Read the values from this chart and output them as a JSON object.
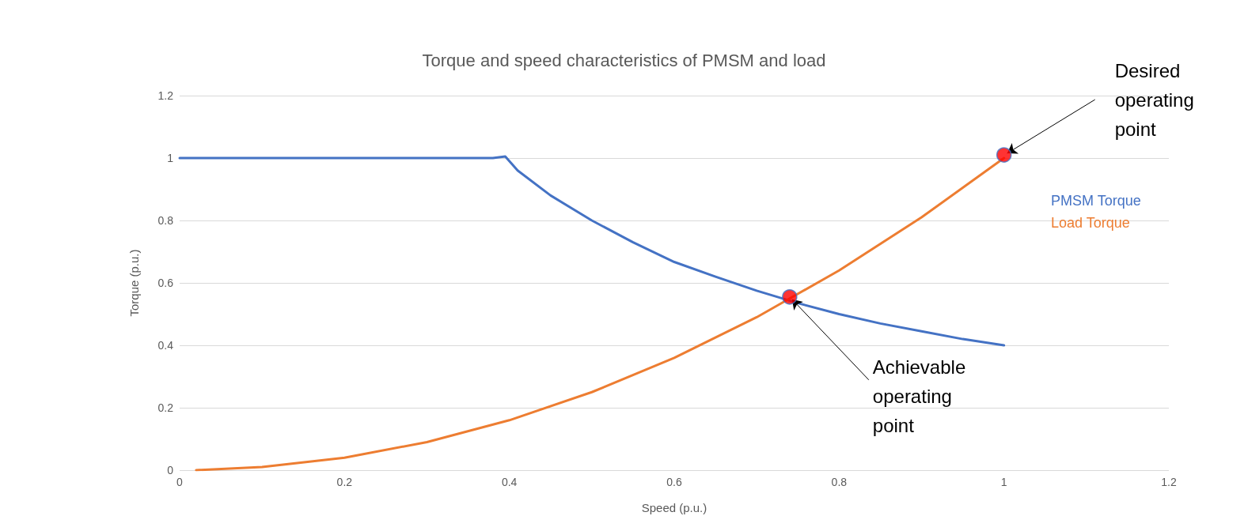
{
  "chart_data": {
    "type": "line",
    "title": "Torque and speed characteristics of PMSM and load",
    "xlabel": "Speed (p.u.)",
    "ylabel": "Torque (p.u.)",
    "xlim": [
      0,
      1.2
    ],
    "xticks": [
      0,
      0.2,
      0.4,
      0.6,
      0.8,
      1,
      1.2
    ],
    "ylim": [
      0,
      1.2
    ],
    "yticks": [
      0,
      0.2,
      0.4,
      0.6,
      0.8,
      1,
      1.2
    ],
    "grid": "y",
    "legend": "right",
    "marker": "none",
    "line_style": "solid",
    "series": [
      {
        "name": "PMSM Torque",
        "color": "#4472c4",
        "x": [
          0,
          0.1,
          0.2,
          0.3,
          0.38,
          0.395,
          0.41,
          0.45,
          0.5,
          0.55,
          0.6,
          0.65,
          0.7,
          0.75,
          0.8,
          0.85,
          0.9,
          0.95,
          1.0
        ],
        "values": [
          1,
          1,
          1,
          1,
          1,
          1.005,
          0.96,
          0.88,
          0.8,
          0.73,
          0.667,
          0.62,
          0.575,
          0.535,
          0.5,
          0.47,
          0.445,
          0.42,
          0.4
        ]
      },
      {
        "name": "Load Torque",
        "color": "#ed7d31",
        "x": [
          0.02,
          0.1,
          0.2,
          0.3,
          0.4,
          0.5,
          0.6,
          0.7,
          0.74,
          0.8,
          0.9,
          1.0
        ],
        "values": [
          0,
          0.01,
          0.04,
          0.09,
          0.16,
          0.25,
          0.36,
          0.49,
          0.55,
          0.64,
          0.81,
          1.0
        ]
      },
      {
        "type": "scatter",
        "marker": "circle",
        "color": "#ff0000",
        "x": [
          1.0,
          0.74
        ],
        "values": [
          1.01,
          0.555
        ]
      }
    ],
    "annotations": [
      {
        "text": "Desired operating point",
        "x": 1.0,
        "y": 1.01
      },
      {
        "text": "Achievable operating point",
        "x": 0.74,
        "y": 0.555
      }
    ]
  }
}
